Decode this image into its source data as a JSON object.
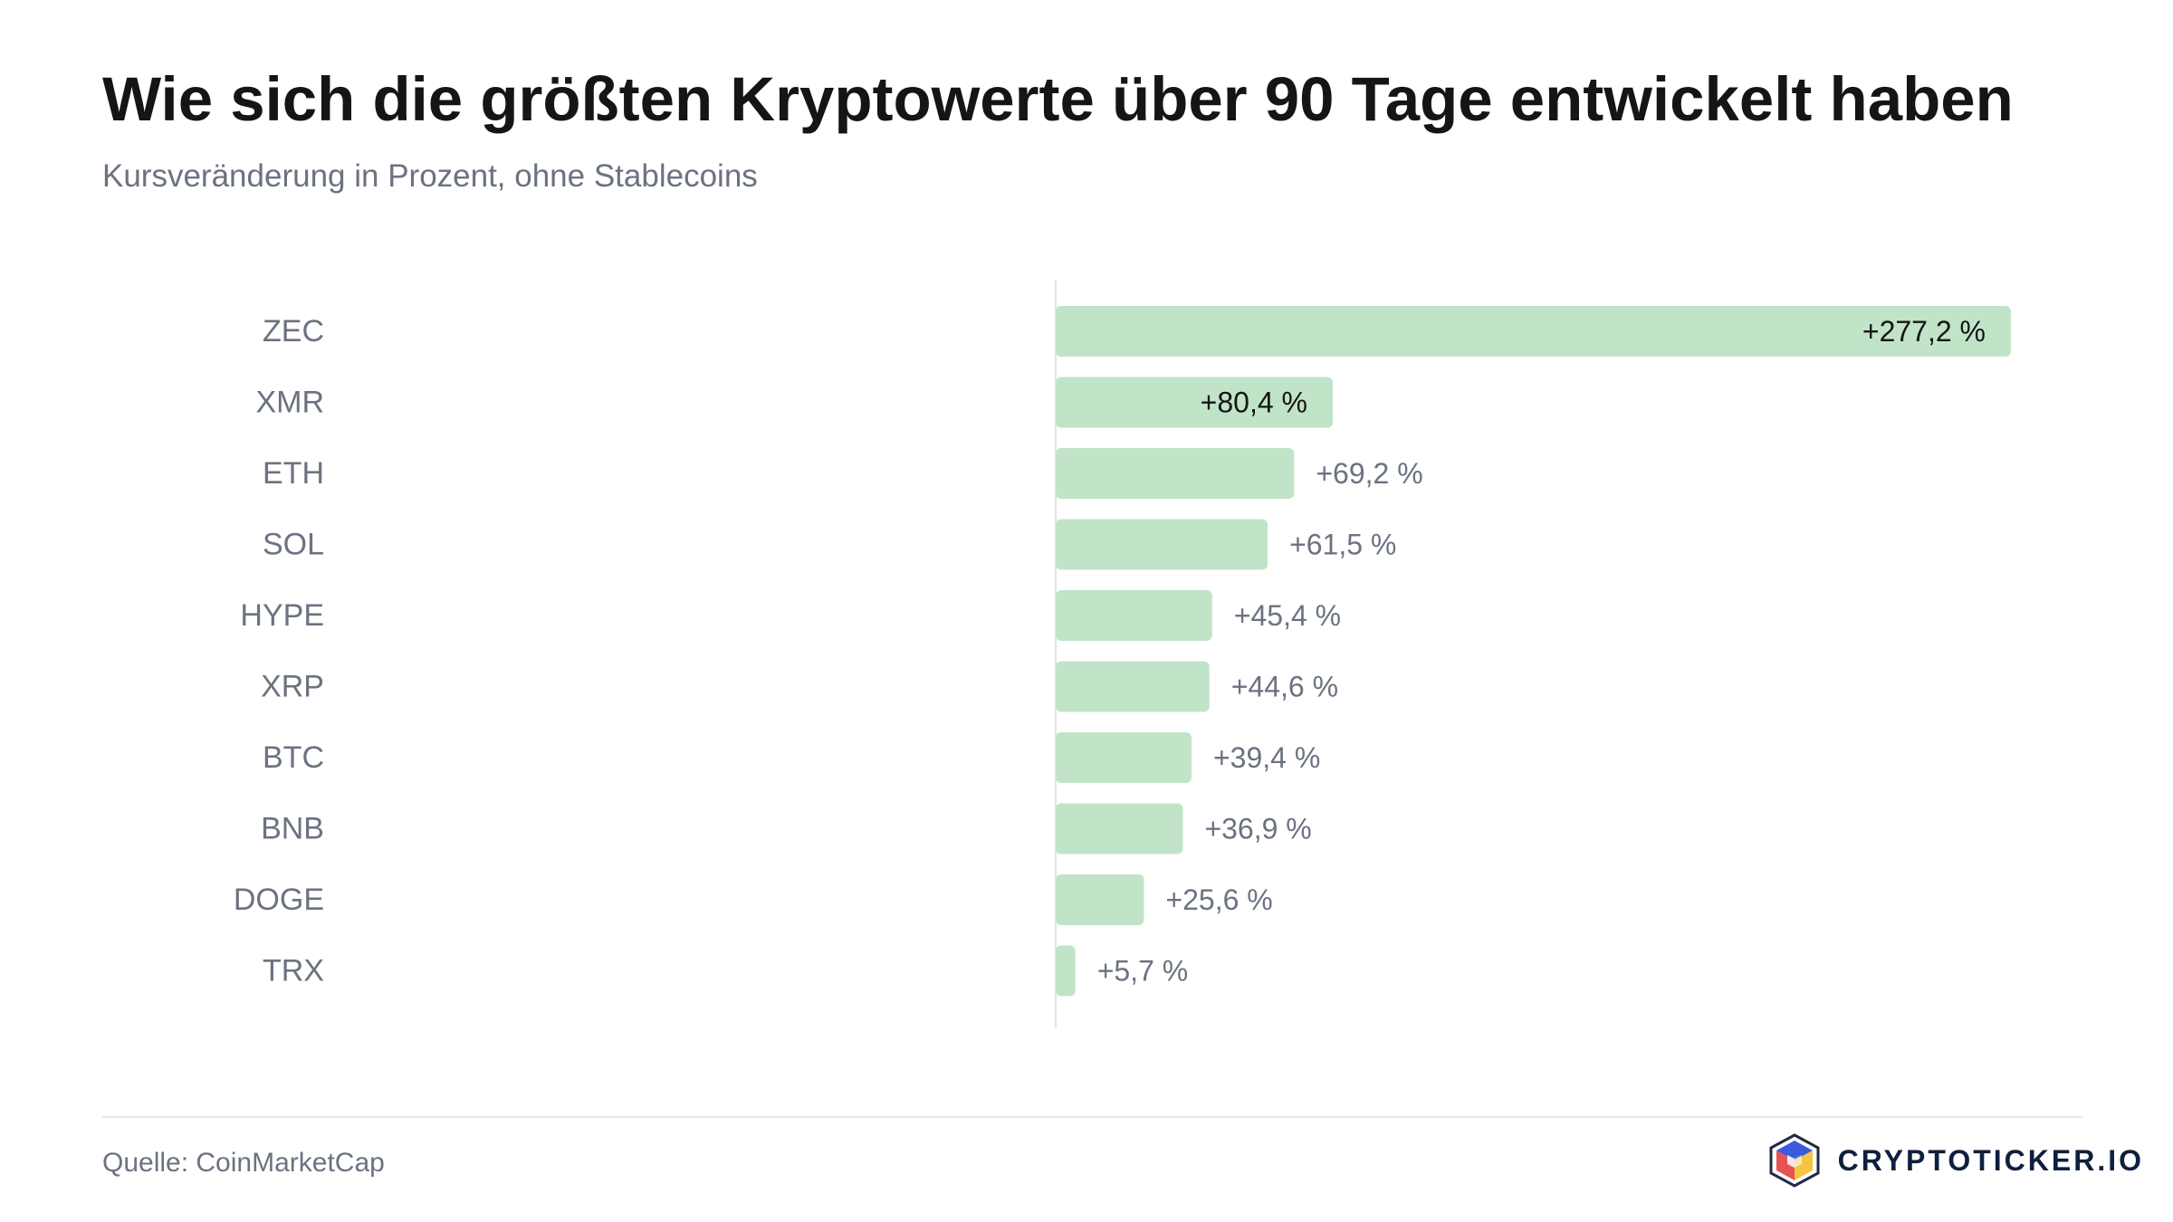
{
  "header": {
    "title": "Wie sich die größten Kryptowerte über 90 Tage entwickelt haben",
    "subtitle": "Kursveränderung in Prozent, ohne Stablecoins"
  },
  "chart_data": {
    "type": "bar",
    "orientation": "horizontal",
    "categories": [
      "ZEC",
      "XMR",
      "ETH",
      "SOL",
      "HYPE",
      "XRP",
      "BTC",
      "BNB",
      "DOGE",
      "TRX"
    ],
    "values": [
      277.2,
      80.4,
      69.2,
      61.5,
      45.4,
      44.6,
      39.4,
      36.9,
      25.6,
      5.7
    ],
    "value_labels": [
      "+277,2 %",
      "+80,4 %",
      "+69,2 %",
      "+61,5 %",
      "+45,4 %",
      "+44,6 %",
      "+39,4 %",
      "+36,9 %",
      "+25,6 %",
      "+5,7 %"
    ],
    "bar_color": "#c1e4c8",
    "xlim": [
      0,
      277.2
    ],
    "grid": false,
    "legend": "none"
  },
  "footer": {
    "source": "Quelle: CoinMarketCap",
    "brand": "CRYPTOTICKER.IO",
    "brand_icon": "cube-logo-icon"
  }
}
